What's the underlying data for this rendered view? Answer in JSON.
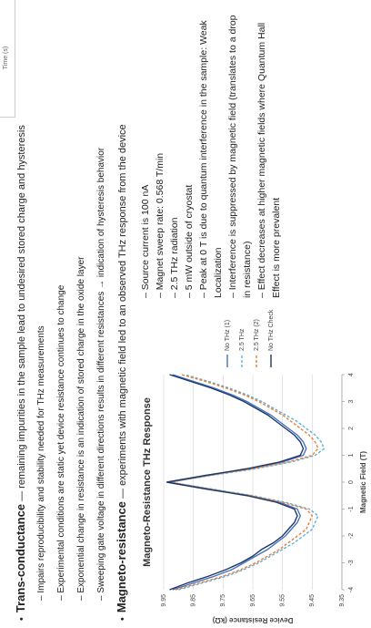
{
  "header_fragment": "Time (s)",
  "bullets": [
    {
      "term": "Trans-conductance",
      "text": " — remaining impurities in the sample lead to undesired stored charge and hysteresis",
      "sub": [
        "– Impairs reproducibility and stability needed for THz measurements",
        "– Experimental conditions are static yet device resistance continues to change",
        "– Exponential change in resistance is an indication of stored charge in the oxide layer",
        "– Sweeping gate voltage in different directions results in different resistances → indication of hysteresis behavior"
      ]
    },
    {
      "term": "Magneto-resistance",
      "text": " — experiments with magnetic field led to an observed THz response from the device",
      "sub": []
    }
  ],
  "notes": [
    "– Source current is 100 nA",
    "– Magnet sweep rate: 0.568 T/min",
    "– 2.5 THz radiation",
    "– 5 mW outside of cryostat",
    "– Peak at 0 T is due to quantum interference in the sample: Weak Localization",
    "– Interference is suppressed by magnetic field (translates to a drop in resistance)",
    "– Effect decreases at higher magnetic fields where Quantum Hall Effect is more prevalent"
  ],
  "chart_data": {
    "type": "line",
    "title": "Magneto-Resistance THz Response",
    "x_label": "Magnetic Field (T)",
    "y_label": "Device Resistance (kΩ)",
    "x": [
      -4,
      -3.75,
      -3.5,
      -3.25,
      -3,
      -2.75,
      -2.5,
      -2.25,
      -2,
      -1.75,
      -1.5,
      -1.25,
      -1,
      -0.75,
      -0.5,
      -0.25,
      0,
      0.25,
      0.5,
      0.75,
      1,
      1.25,
      1.5,
      1.75,
      2,
      2.25,
      2.5,
      2.75,
      3,
      3.25,
      3.5,
      3.75,
      4
    ],
    "xlim": [
      -4,
      4
    ],
    "xticks": [
      -4,
      -3,
      -2,
      -1,
      0,
      1,
      2,
      3,
      4
    ],
    "ylim": [
      9.35,
      9.95
    ],
    "yticks": [
      9.35,
      9.45,
      9.55,
      9.65,
      9.75,
      9.85,
      9.95
    ],
    "grid": true,
    "series": [
      {
        "name": "No THz (1)",
        "color": "#4472c4",
        "dashed": false,
        "values": [
          9.92,
          9.85,
          9.78,
          9.72,
          9.68,
          9.64,
          9.6,
          9.57,
          9.54,
          9.52,
          9.5,
          9.49,
          9.5,
          9.56,
          9.66,
          9.8,
          9.93,
          9.8,
          9.66,
          9.55,
          9.48,
          9.47,
          9.48,
          9.5,
          9.53,
          9.56,
          9.59,
          9.63,
          9.67,
          9.72,
          9.78,
          9.85,
          9.92
        ]
      },
      {
        "name": "2.5 THz",
        "color": "#5bb0e0",
        "dashed": true,
        "values": [
          9.9,
          9.82,
          9.74,
          9.68,
          9.63,
          9.59,
          9.55,
          9.51,
          9.48,
          9.45,
          9.44,
          9.43,
          9.46,
          9.54,
          9.65,
          9.79,
          9.93,
          9.79,
          9.64,
          9.52,
          9.44,
          9.41,
          9.42,
          9.44,
          9.47,
          9.5,
          9.54,
          9.58,
          9.62,
          9.67,
          9.73,
          9.8,
          9.88
        ]
      },
      {
        "name": "2.5 THz (2)",
        "color": "#ed7d31",
        "dashed": true,
        "values": [
          9.91,
          9.83,
          9.75,
          9.69,
          9.64,
          9.6,
          9.56,
          9.53,
          9.5,
          9.47,
          9.46,
          9.45,
          9.47,
          9.55,
          9.66,
          9.8,
          9.93,
          9.8,
          9.65,
          9.53,
          9.45,
          9.43,
          9.44,
          9.46,
          9.49,
          9.52,
          9.55,
          9.59,
          9.63,
          9.68,
          9.74,
          9.81,
          9.89
        ]
      },
      {
        "name": "No THz Check",
        "color": "#1f3864",
        "dashed": false,
        "values": [
          9.93,
          9.87,
          9.8,
          9.74,
          9.69,
          9.65,
          9.62,
          9.58,
          9.55,
          9.53,
          9.51,
          9.5,
          9.51,
          9.57,
          9.67,
          9.81,
          9.94,
          9.81,
          9.67,
          9.56,
          9.49,
          9.48,
          9.49,
          9.51,
          9.54,
          9.57,
          9.6,
          9.64,
          9.68,
          9.73,
          9.79,
          9.86,
          9.93
        ]
      }
    ]
  }
}
